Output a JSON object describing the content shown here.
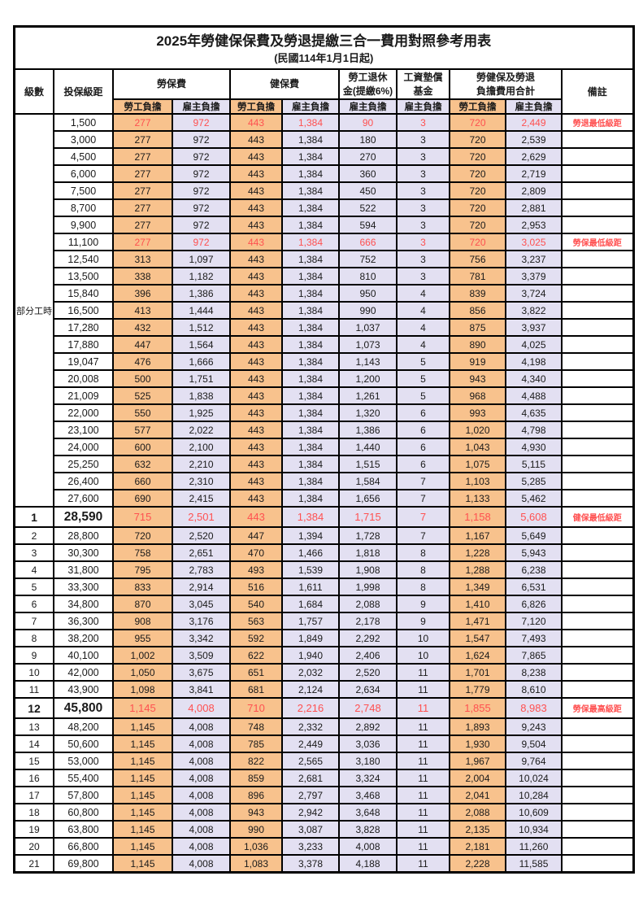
{
  "page": {
    "title": "2025年勞健保保費及勞退提繳三合一費用對照參考用表",
    "subtitle": "(民國114年1月1日起)"
  },
  "colors": {
    "employee_column_bg": "#F8C28D",
    "employer_column_bg": "#E3E0F2",
    "highlight_text": "#FF5050",
    "border": "#000000"
  },
  "header": {
    "level": "級數",
    "bracket": "投保級距",
    "labor_insurance": "勞保費",
    "health_insurance": "健保費",
    "pension_line1": "勞工退休",
    "pension_line2": "金(提繳6%)",
    "wage_fund_line1": "工資墊償",
    "wage_fund_line2": "基金",
    "total_line1": "勞健保及勞退",
    "total_line2": "負擔費用合計",
    "note": "備註",
    "employee": "勞工負擔",
    "employer": "雇主負擔"
  },
  "part_time": {
    "label": "部分工時",
    "rowspan": 23
  },
  "rows": [
    {
      "level": null,
      "bracket": "1,500",
      "v": [
        "277",
        "972",
        "443",
        "1,384",
        "90",
        "3",
        "720",
        "2,449"
      ],
      "note": "勞退最低級距",
      "red": true,
      "big": false
    },
    {
      "level": null,
      "bracket": "3,000",
      "v": [
        "277",
        "972",
        "443",
        "1,384",
        "180",
        "3",
        "720",
        "2,539"
      ],
      "note": "",
      "red": false,
      "big": false
    },
    {
      "level": null,
      "bracket": "4,500",
      "v": [
        "277",
        "972",
        "443",
        "1,384",
        "270",
        "3",
        "720",
        "2,629"
      ],
      "note": "",
      "red": false,
      "big": false
    },
    {
      "level": null,
      "bracket": "6,000",
      "v": [
        "277",
        "972",
        "443",
        "1,384",
        "360",
        "3",
        "720",
        "2,719"
      ],
      "note": "",
      "red": false,
      "big": false
    },
    {
      "level": null,
      "bracket": "7,500",
      "v": [
        "277",
        "972",
        "443",
        "1,384",
        "450",
        "3",
        "720",
        "2,809"
      ],
      "note": "",
      "red": false,
      "big": false
    },
    {
      "level": null,
      "bracket": "8,700",
      "v": [
        "277",
        "972",
        "443",
        "1,384",
        "522",
        "3",
        "720",
        "2,881"
      ],
      "note": "",
      "red": false,
      "big": false
    },
    {
      "level": null,
      "bracket": "9,900",
      "v": [
        "277",
        "972",
        "443",
        "1,384",
        "594",
        "3",
        "720",
        "2,953"
      ],
      "note": "",
      "red": false,
      "big": false
    },
    {
      "level": null,
      "bracket": "11,100",
      "v": [
        "277",
        "972",
        "443",
        "1,384",
        "666",
        "3",
        "720",
        "3,025"
      ],
      "note": "勞保最低級距",
      "red": true,
      "big": false
    },
    {
      "level": null,
      "bracket": "12,540",
      "v": [
        "313",
        "1,097",
        "443",
        "1,384",
        "752",
        "3",
        "756",
        "3,237"
      ],
      "note": "",
      "red": false,
      "big": false
    },
    {
      "level": null,
      "bracket": "13,500",
      "v": [
        "338",
        "1,182",
        "443",
        "1,384",
        "810",
        "3",
        "781",
        "3,379"
      ],
      "note": "",
      "red": false,
      "big": false
    },
    {
      "level": null,
      "bracket": "15,840",
      "v": [
        "396",
        "1,386",
        "443",
        "1,384",
        "950",
        "4",
        "839",
        "3,724"
      ],
      "note": "",
      "red": false,
      "big": false
    },
    {
      "level": null,
      "bracket": "16,500",
      "v": [
        "413",
        "1,444",
        "443",
        "1,384",
        "990",
        "4",
        "856",
        "3,822"
      ],
      "note": "",
      "red": false,
      "big": false
    },
    {
      "level": null,
      "bracket": "17,280",
      "v": [
        "432",
        "1,512",
        "443",
        "1,384",
        "1,037",
        "4",
        "875",
        "3,937"
      ],
      "note": "",
      "red": false,
      "big": false
    },
    {
      "level": null,
      "bracket": "17,880",
      "v": [
        "447",
        "1,564",
        "443",
        "1,384",
        "1,073",
        "4",
        "890",
        "4,025"
      ],
      "note": "",
      "red": false,
      "big": false
    },
    {
      "level": null,
      "bracket": "19,047",
      "v": [
        "476",
        "1,666",
        "443",
        "1,384",
        "1,143",
        "5",
        "919",
        "4,198"
      ],
      "note": "",
      "red": false,
      "big": false
    },
    {
      "level": null,
      "bracket": "20,008",
      "v": [
        "500",
        "1,751",
        "443",
        "1,384",
        "1,200",
        "5",
        "943",
        "4,340"
      ],
      "note": "",
      "red": false,
      "big": false
    },
    {
      "level": null,
      "bracket": "21,009",
      "v": [
        "525",
        "1,838",
        "443",
        "1,384",
        "1,261",
        "5",
        "968",
        "4,488"
      ],
      "note": "",
      "red": false,
      "big": false
    },
    {
      "level": null,
      "bracket": "22,000",
      "v": [
        "550",
        "1,925",
        "443",
        "1,384",
        "1,320",
        "6",
        "993",
        "4,635"
      ],
      "note": "",
      "red": false,
      "big": false
    },
    {
      "level": null,
      "bracket": "23,100",
      "v": [
        "577",
        "2,022",
        "443",
        "1,384",
        "1,386",
        "6",
        "1,020",
        "4,798"
      ],
      "note": "",
      "red": false,
      "big": false
    },
    {
      "level": null,
      "bracket": "24,000",
      "v": [
        "600",
        "2,100",
        "443",
        "1,384",
        "1,440",
        "6",
        "1,043",
        "4,930"
      ],
      "note": "",
      "red": false,
      "big": false
    },
    {
      "level": null,
      "bracket": "25,250",
      "v": [
        "632",
        "2,210",
        "443",
        "1,384",
        "1,515",
        "6",
        "1,075",
        "5,115"
      ],
      "note": "",
      "red": false,
      "big": false
    },
    {
      "level": null,
      "bracket": "26,400",
      "v": [
        "660",
        "2,310",
        "443",
        "1,384",
        "1,584",
        "7",
        "1,103",
        "5,285"
      ],
      "note": "",
      "red": false,
      "big": false
    },
    {
      "level": null,
      "bracket": "27,600",
      "v": [
        "690",
        "2,415",
        "443",
        "1,384",
        "1,656",
        "7",
        "1,133",
        "5,462"
      ],
      "note": "",
      "red": false,
      "big": false
    },
    {
      "level": "1",
      "bracket": "28,590",
      "v": [
        "715",
        "2,501",
        "443",
        "1,384",
        "1,715",
        "7",
        "1,158",
        "5,608"
      ],
      "note": "健保最低級距",
      "red": true,
      "big": true
    },
    {
      "level": "2",
      "bracket": "28,800",
      "v": [
        "720",
        "2,520",
        "447",
        "1,394",
        "1,728",
        "7",
        "1,167",
        "5,649"
      ],
      "note": "",
      "red": false,
      "big": false
    },
    {
      "level": "3",
      "bracket": "30,300",
      "v": [
        "758",
        "2,651",
        "470",
        "1,466",
        "1,818",
        "8",
        "1,228",
        "5,943"
      ],
      "note": "",
      "red": false,
      "big": false
    },
    {
      "level": "4",
      "bracket": "31,800",
      "v": [
        "795",
        "2,783",
        "493",
        "1,539",
        "1,908",
        "8",
        "1,288",
        "6,238"
      ],
      "note": "",
      "red": false,
      "big": false
    },
    {
      "level": "5",
      "bracket": "33,300",
      "v": [
        "833",
        "2,914",
        "516",
        "1,611",
        "1,998",
        "8",
        "1,349",
        "6,531"
      ],
      "note": "",
      "red": false,
      "big": false
    },
    {
      "level": "6",
      "bracket": "34,800",
      "v": [
        "870",
        "3,045",
        "540",
        "1,684",
        "2,088",
        "9",
        "1,410",
        "6,826"
      ],
      "note": "",
      "red": false,
      "big": false
    },
    {
      "level": "7",
      "bracket": "36,300",
      "v": [
        "908",
        "3,176",
        "563",
        "1,757",
        "2,178",
        "9",
        "1,471",
        "7,120"
      ],
      "note": "",
      "red": false,
      "big": false
    },
    {
      "level": "8",
      "bracket": "38,200",
      "v": [
        "955",
        "3,342",
        "592",
        "1,849",
        "2,292",
        "10",
        "1,547",
        "7,493"
      ],
      "note": "",
      "red": false,
      "big": false
    },
    {
      "level": "9",
      "bracket": "40,100",
      "v": [
        "1,002",
        "3,509",
        "622",
        "1,940",
        "2,406",
        "10",
        "1,624",
        "7,865"
      ],
      "note": "",
      "red": false,
      "big": false
    },
    {
      "level": "10",
      "bracket": "42,000",
      "v": [
        "1,050",
        "3,675",
        "651",
        "2,032",
        "2,520",
        "11",
        "1,701",
        "8,238"
      ],
      "note": "",
      "red": false,
      "big": false
    },
    {
      "level": "11",
      "bracket": "43,900",
      "v": [
        "1,098",
        "3,841",
        "681",
        "2,124",
        "2,634",
        "11",
        "1,779",
        "8,610"
      ],
      "note": "",
      "red": false,
      "big": false
    },
    {
      "level": "12",
      "bracket": "45,800",
      "v": [
        "1,145",
        "4,008",
        "710",
        "2,216",
        "2,748",
        "11",
        "1,855",
        "8,983"
      ],
      "note": "勞保最高級距",
      "red": true,
      "big": true
    },
    {
      "level": "13",
      "bracket": "48,200",
      "v": [
        "1,145",
        "4,008",
        "748",
        "2,332",
        "2,892",
        "11",
        "1,893",
        "9,243"
      ],
      "note": "",
      "red": false,
      "big": false
    },
    {
      "level": "14",
      "bracket": "50,600",
      "v": [
        "1,145",
        "4,008",
        "785",
        "2,449",
        "3,036",
        "11",
        "1,930",
        "9,504"
      ],
      "note": "",
      "red": false,
      "big": false
    },
    {
      "level": "15",
      "bracket": "53,000",
      "v": [
        "1,145",
        "4,008",
        "822",
        "2,565",
        "3,180",
        "11",
        "1,967",
        "9,764"
      ],
      "note": "",
      "red": false,
      "big": false
    },
    {
      "level": "16",
      "bracket": "55,400",
      "v": [
        "1,145",
        "4,008",
        "859",
        "2,681",
        "3,324",
        "11",
        "2,004",
        "10,024"
      ],
      "note": "",
      "red": false,
      "big": false
    },
    {
      "level": "17",
      "bracket": "57,800",
      "v": [
        "1,145",
        "4,008",
        "896",
        "2,797",
        "3,468",
        "11",
        "2,041",
        "10,284"
      ],
      "note": "",
      "red": false,
      "big": false
    },
    {
      "level": "18",
      "bracket": "60,800",
      "v": [
        "1,145",
        "4,008",
        "943",
        "2,942",
        "3,648",
        "11",
        "2,088",
        "10,609"
      ],
      "note": "",
      "red": false,
      "big": false
    },
    {
      "level": "19",
      "bracket": "63,800",
      "v": [
        "1,145",
        "4,008",
        "990",
        "3,087",
        "3,828",
        "11",
        "2,135",
        "10,934"
      ],
      "note": "",
      "red": false,
      "big": false
    },
    {
      "level": "20",
      "bracket": "66,800",
      "v": [
        "1,145",
        "4,008",
        "1,036",
        "3,233",
        "4,008",
        "11",
        "2,181",
        "11,260"
      ],
      "note": "",
      "red": false,
      "big": false
    },
    {
      "level": "21",
      "bracket": "69,800",
      "v": [
        "1,145",
        "4,008",
        "1,083",
        "3,378",
        "4,188",
        "11",
        "2,228",
        "11,585"
      ],
      "note": "",
      "red": false,
      "big": false
    }
  ]
}
